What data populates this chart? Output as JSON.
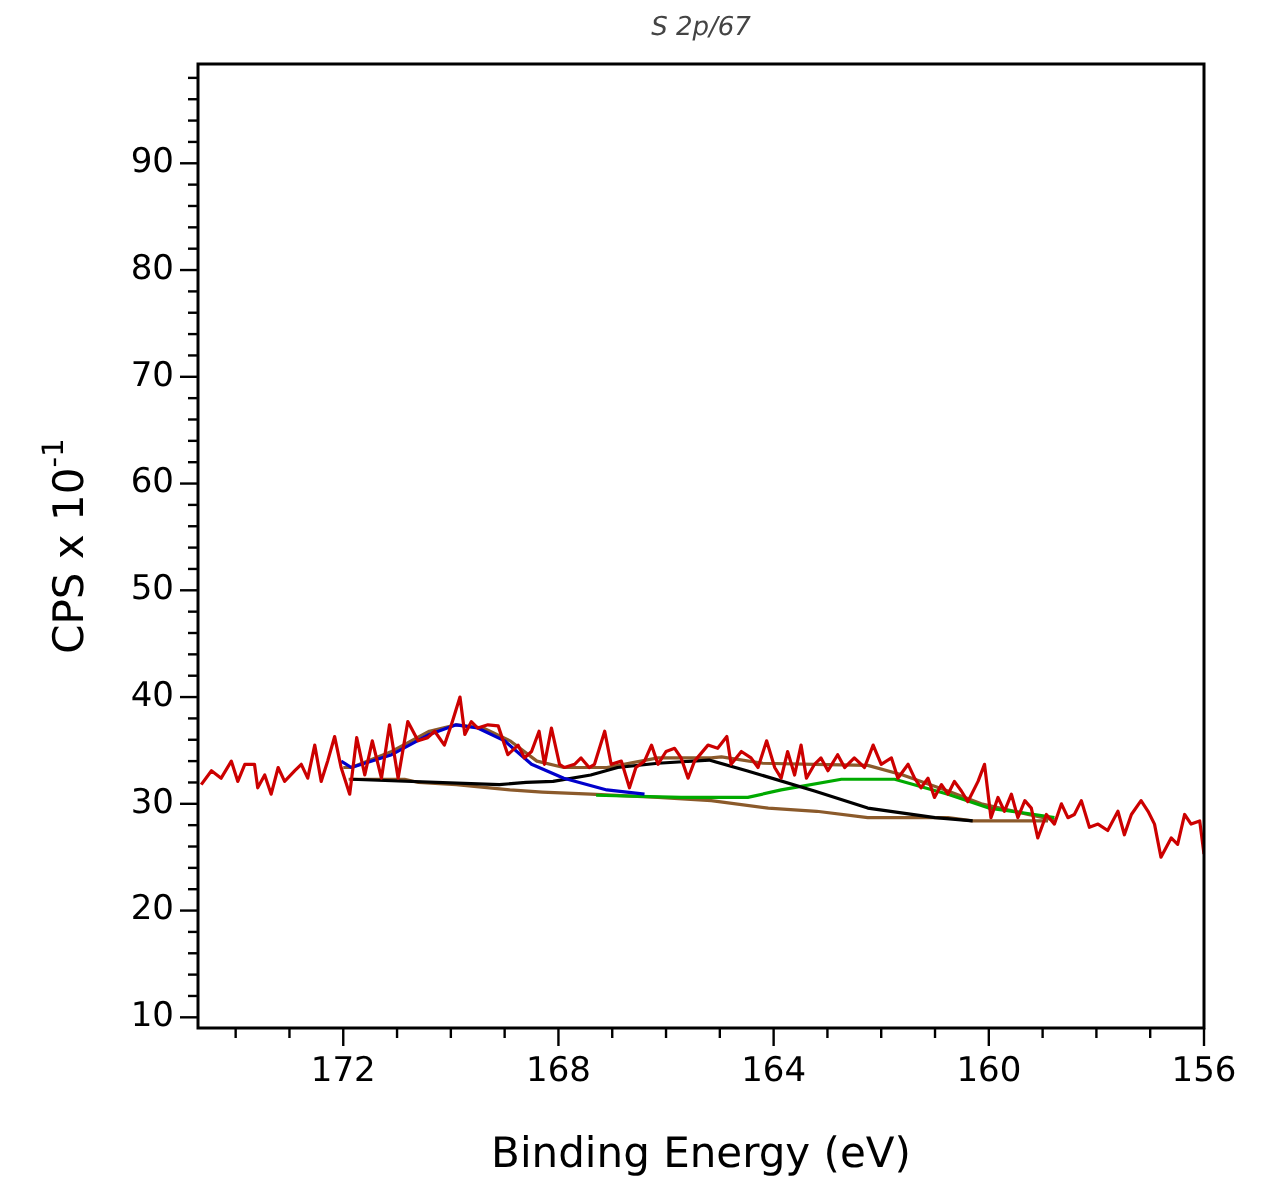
{
  "chart_data": {
    "type": "line",
    "title": "S 2p/67",
    "xlabel": "Binding Energy (eV)",
    "ylabel": "CPS x 10$^{-1}$",
    "xlim": [
      174.7,
      156
    ],
    "ylim": [
      9,
      99.3
    ],
    "xticks": [
      {
        "value": 174,
        "label": null
      },
      {
        "value": 173,
        "label": null
      },
      172,
      {
        "value": 171,
        "label": null
      },
      {
        "value": 170,
        "label": null
      },
      {
        "value": 169,
        "label": null
      },
      168,
      {
        "value": 167,
        "label": null
      },
      {
        "value": 166,
        "label": null
      },
      {
        "value": 165,
        "label": null
      },
      164,
      {
        "value": 163,
        "label": null
      },
      {
        "value": 162,
        "label": null
      },
      {
        "value": 161,
        "label": null
      },
      160,
      {
        "value": 159,
        "label": null
      },
      {
        "value": 158,
        "label": null
      },
      {
        "value": 157,
        "label": null
      },
      156
    ],
    "yticks": [
      10,
      {
        "value": 12,
        "label": null
      },
      {
        "value": 14,
        "label": null
      },
      {
        "value": 16,
        "label": null
      },
      {
        "value": 18,
        "label": null
      },
      20,
      {
        "value": 22,
        "label": null
      },
      {
        "value": 24,
        "label": null
      },
      {
        "value": 26,
        "label": null
      },
      {
        "value": 28,
        "label": null
      },
      30,
      {
        "value": 32,
        "label": null
      },
      {
        "value": 34,
        "label": null
      },
      {
        "value": 36,
        "label": null
      },
      {
        "value": 38,
        "label": null
      },
      40,
      {
        "value": 42,
        "label": null
      },
      {
        "value": 44,
        "label": null
      },
      {
        "value": 46,
        "label": null
      },
      {
        "value": 48,
        "label": null
      },
      50,
      {
        "value": 52,
        "label": null
      },
      {
        "value": 54,
        "label": null
      },
      {
        "value": 56,
        "label": null
      },
      {
        "value": 58,
        "label": null
      },
      60,
      {
        "value": 62,
        "label": null
      },
      {
        "value": 64,
        "label": null
      },
      {
        "value": 66,
        "label": null
      },
      {
        "value": 68,
        "label": null
      },
      70,
      {
        "value": 72,
        "label": null
      },
      {
        "value": 74,
        "label": null
      },
      {
        "value": 76,
        "label": null
      },
      {
        "value": 78,
        "label": null
      },
      80,
      {
        "value": 82,
        "label": null
      },
      {
        "value": 84,
        "label": null
      },
      {
        "value": 86,
        "label": null
      },
      {
        "value": 88,
        "label": null
      },
      90,
      {
        "value": 92,
        "label": null
      },
      {
        "value": 94,
        "label": null
      },
      {
        "value": 96,
        "label": null
      },
      {
        "value": 98,
        "label": null
      }
    ],
    "grid": false,
    "legend": false,
    "marker": "none",
    "line_style": "solid",
    "series": [
      {
        "color": "#cc0000",
        "x": [
          174.64,
          174.45,
          174.27,
          174.08,
          173.96,
          173.83,
          173.65,
          173.59,
          173.46,
          173.34,
          173.21,
          173.09,
          172.9,
          172.78,
          172.66,
          172.53,
          172.41,
          172.29,
          172.16,
          172.04,
          171.88,
          171.75,
          171.6,
          171.46,
          171.29,
          171.14,
          170.98,
          170.8,
          170.61,
          170.43,
          170.3,
          170.12,
          169.99,
          169.83,
          169.74,
          169.62,
          169.5,
          169.31,
          169.12,
          168.94,
          168.75,
          168.63,
          168.5,
          168.36,
          168.26,
          168.13,
          167.98,
          167.89,
          167.7,
          167.58,
          167.43,
          167.33,
          167.14,
          167.02,
          166.83,
          166.68,
          166.56,
          166.4,
          166.27,
          166.15,
          166,
          165.84,
          165.72,
          165.59,
          165.47,
          165.22,
          165.04,
          164.87,
          164.79,
          164.6,
          164.42,
          164.29,
          164.13,
          163.98,
          163.86,
          163.74,
          163.61,
          163.49,
          163.39,
          163.24,
          163.12,
          162.99,
          162.81,
          162.68,
          162.5,
          162.31,
          162.15,
          162,
          161.81,
          161.69,
          161.5,
          161.38,
          161.26,
          161.13,
          161.01,
          160.88,
          160.76,
          160.64,
          160.51,
          160.39,
          160.2,
          160.08,
          159.96,
          159.83,
          159.71,
          159.58,
          159.46,
          159.33,
          159.21,
          159.09,
          158.93,
          158.78,
          158.65,
          158.53,
          158.41,
          158.28,
          158.13,
          157.97,
          157.79,
          157.6,
          157.48,
          157.35,
          157.17,
          157.04,
          156.92,
          156.8,
          156.61,
          156.49,
          156.36,
          156.24,
          156.08,
          156
        ],
        "values": [
          31.8,
          33.1,
          32.4,
          34,
          32.1,
          33.7,
          33.7,
          31.5,
          32.7,
          30.9,
          33.4,
          32.1,
          33.1,
          33.7,
          32.4,
          35.5,
          32.1,
          34,
          36.3,
          33.4,
          30.9,
          36.2,
          32.7,
          35.9,
          32.4,
          37.4,
          32.4,
          37.7,
          35.9,
          36.2,
          36.8,
          35.5,
          37.4,
          40,
          36.5,
          37.7,
          37.1,
          37.4,
          37.3,
          34.6,
          35.5,
          34.3,
          34.9,
          36.8,
          33.7,
          37.1,
          33.7,
          33.4,
          33.7,
          34.3,
          33.4,
          33.7,
          36.8,
          33.7,
          34,
          31.5,
          33.4,
          34,
          35.5,
          33.7,
          34.9,
          35.2,
          34.3,
          32.4,
          34,
          35.5,
          35.2,
          36.3,
          33.7,
          34.9,
          34.3,
          33.4,
          35.9,
          33.4,
          32.4,
          34.9,
          32.7,
          35.5,
          32.4,
          33.7,
          34.3,
          33.1,
          34.6,
          33.4,
          34.3,
          33.4,
          35.5,
          33.7,
          34.3,
          32.4,
          33.7,
          32.4,
          31.5,
          32.4,
          30.6,
          31.8,
          30.9,
          32.1,
          31.2,
          30.2,
          32.1,
          33.7,
          28.7,
          30.6,
          29.3,
          30.9,
          28.7,
          30.3,
          29.6,
          26.8,
          29,
          28.1,
          30,
          28.7,
          29,
          30.3,
          27.8,
          28.1,
          27.5,
          29.3,
          27.1,
          29,
          30.3,
          29.3,
          28.1,
          25,
          26.8,
          26.2,
          29,
          28.1,
          28.4,
          25.3
        ]
      },
      {
        "color": "#0000cc",
        "x": [
          172.04,
          171.85,
          171.1,
          170.4,
          169.9,
          169.5,
          169,
          168.5,
          167.9,
          167.1,
          166.4
        ],
        "values": [
          34,
          33.4,
          34.6,
          36.5,
          37.4,
          37.1,
          35.9,
          33.7,
          32.4,
          31.3,
          30.9
        ]
      },
      {
        "color": "#000000",
        "x": [
          171.85,
          169.1,
          168.6,
          168.1,
          167.4,
          166.9,
          166.15,
          165.2,
          164.5,
          163.24,
          162.25,
          161,
          160.3
        ],
        "values": [
          32.3,
          31.8,
          32,
          32.1,
          32.7,
          33.4,
          33.8,
          34.1,
          33.1,
          31.2,
          29.6,
          28.7,
          28.4
        ]
      },
      {
        "color": "#00aa00",
        "x": [
          167.3,
          165.72,
          164.48,
          163.86,
          162.74,
          161.75,
          160.76,
          160,
          159.15,
          158.78
        ],
        "values": [
          30.8,
          30.6,
          30.6,
          31.3,
          32.3,
          32.3,
          30.9,
          29.6,
          29,
          28.7
        ]
      },
      {
        "color": "#8b5a2b",
        "x": [
          172,
          171.85,
          171.1,
          170.4,
          169.9,
          169.4,
          168.9,
          168.4,
          167.9,
          167.1,
          166.15,
          165.16,
          164.97,
          164.2,
          163.24,
          162.25,
          161.6,
          160.76,
          160.14,
          159.27,
          158.78
        ],
        "values": [
          33.4,
          33.4,
          34.9,
          36.8,
          37.4,
          37.1,
          35.9,
          34,
          33.4,
          33.4,
          34.3,
          34.3,
          34.4,
          33.8,
          33.7,
          33.6,
          32.7,
          31.2,
          30,
          29,
          28.5
        ]
      },
      {
        "color": "#8b5a2b",
        "x": [
          171.9,
          170.86,
          170.6,
          169.9,
          168.9,
          168.3,
          167.4,
          166.15,
          165.16,
          164.1,
          163.2,
          162.25,
          160.76,
          160.3,
          158.9
        ],
        "values": [
          32.3,
          32.3,
          32,
          31.8,
          31.3,
          31.1,
          30.9,
          30.6,
          30.3,
          29.6,
          29.3,
          28.7,
          28.7,
          28.4,
          28.4
        ]
      }
    ]
  }
}
